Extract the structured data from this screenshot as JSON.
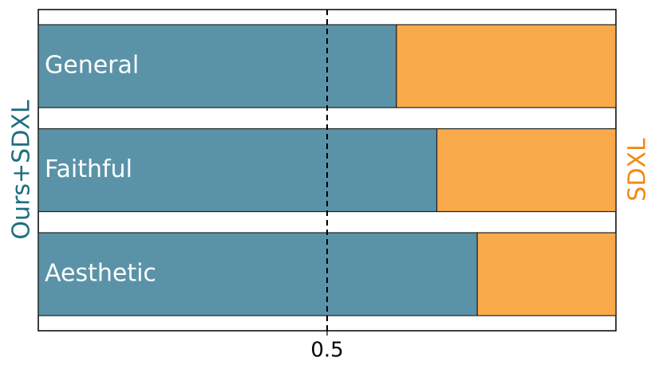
{
  "chart_data": {
    "type": "stacked-barh",
    "categories": [
      "General",
      "Faithful",
      "Aesthetic"
    ],
    "series": [
      {
        "name": "Ours+SDXL",
        "color": "#5a93a8",
        "values": [
          0.62,
          0.69,
          0.76
        ]
      },
      {
        "name": "SDXL",
        "color": "#f9aa4b",
        "values": [
          0.38,
          0.31,
          0.24
        ]
      }
    ],
    "ylabel": "Ours+SDXL",
    "ylabel_color": "#1f6e82",
    "y2label": "SDXL",
    "y2label_color": "#f28a14",
    "xlim": [
      0,
      1
    ],
    "xticks": [
      0.5
    ],
    "reference_line": true
  }
}
